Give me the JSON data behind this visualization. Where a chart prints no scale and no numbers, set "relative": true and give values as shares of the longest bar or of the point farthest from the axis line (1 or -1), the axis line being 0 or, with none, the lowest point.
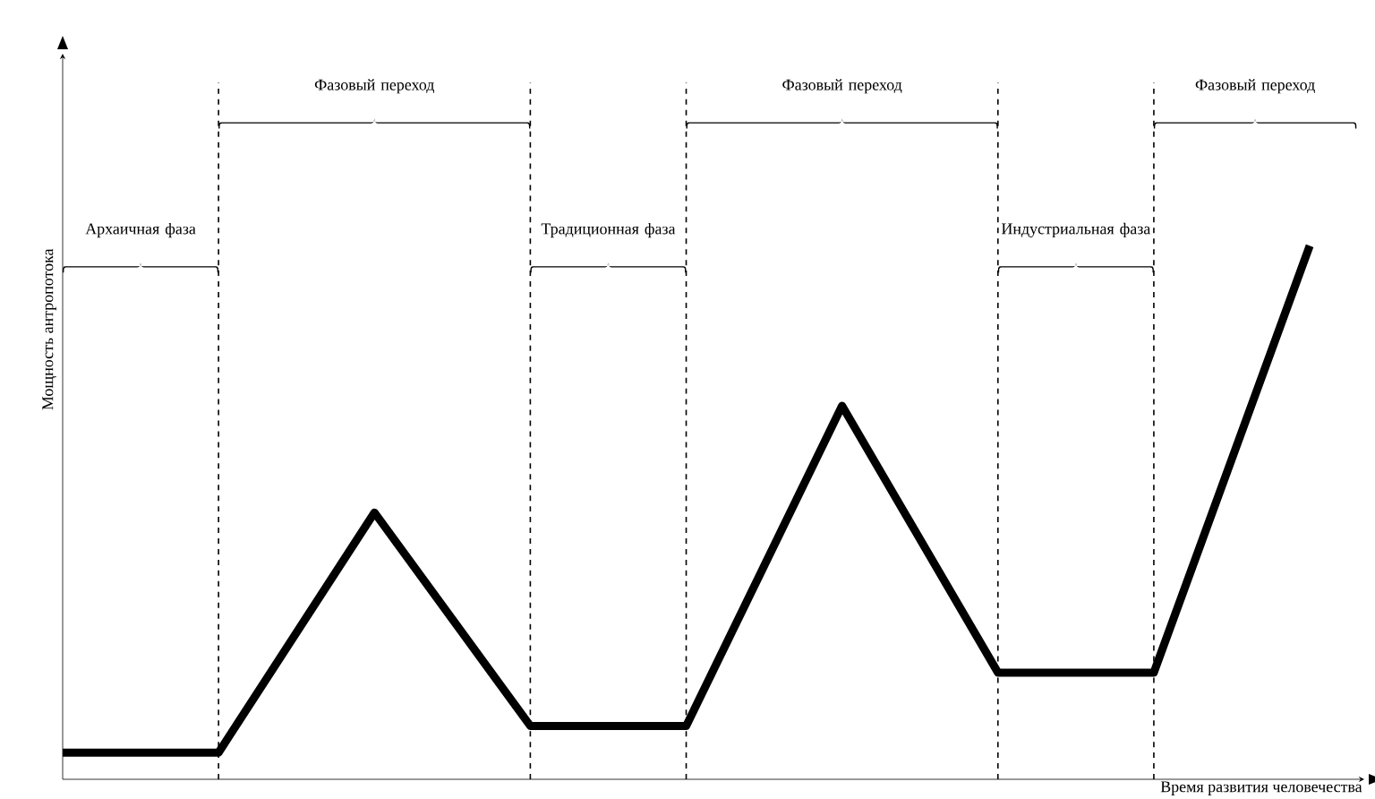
{
  "chart_data": {
    "type": "line",
    "relative": true,
    "xlabel": "Время развития человечества",
    "ylabel": "Мощность антропотока",
    "grid": "x",
    "marker": "none",
    "line_style": "solid",
    "categories": [
      null,
      null,
      null,
      null,
      null,
      null,
      null,
      null,
      null
    ],
    "series": [
      {
        "color": "#000000",
        "values": [
          0.05,
          0.05,
          0.5,
          0.1,
          0.1,
          0.7,
          0.2,
          0.2,
          1
        ]
      }
    ],
    "annotations": [
      "Архаичная фаза",
      "Фазовый переход",
      "Традиционная фаза",
      "Фазовый переход",
      "Индустриальная фаза",
      "Фазовый переход"
    ]
  }
}
